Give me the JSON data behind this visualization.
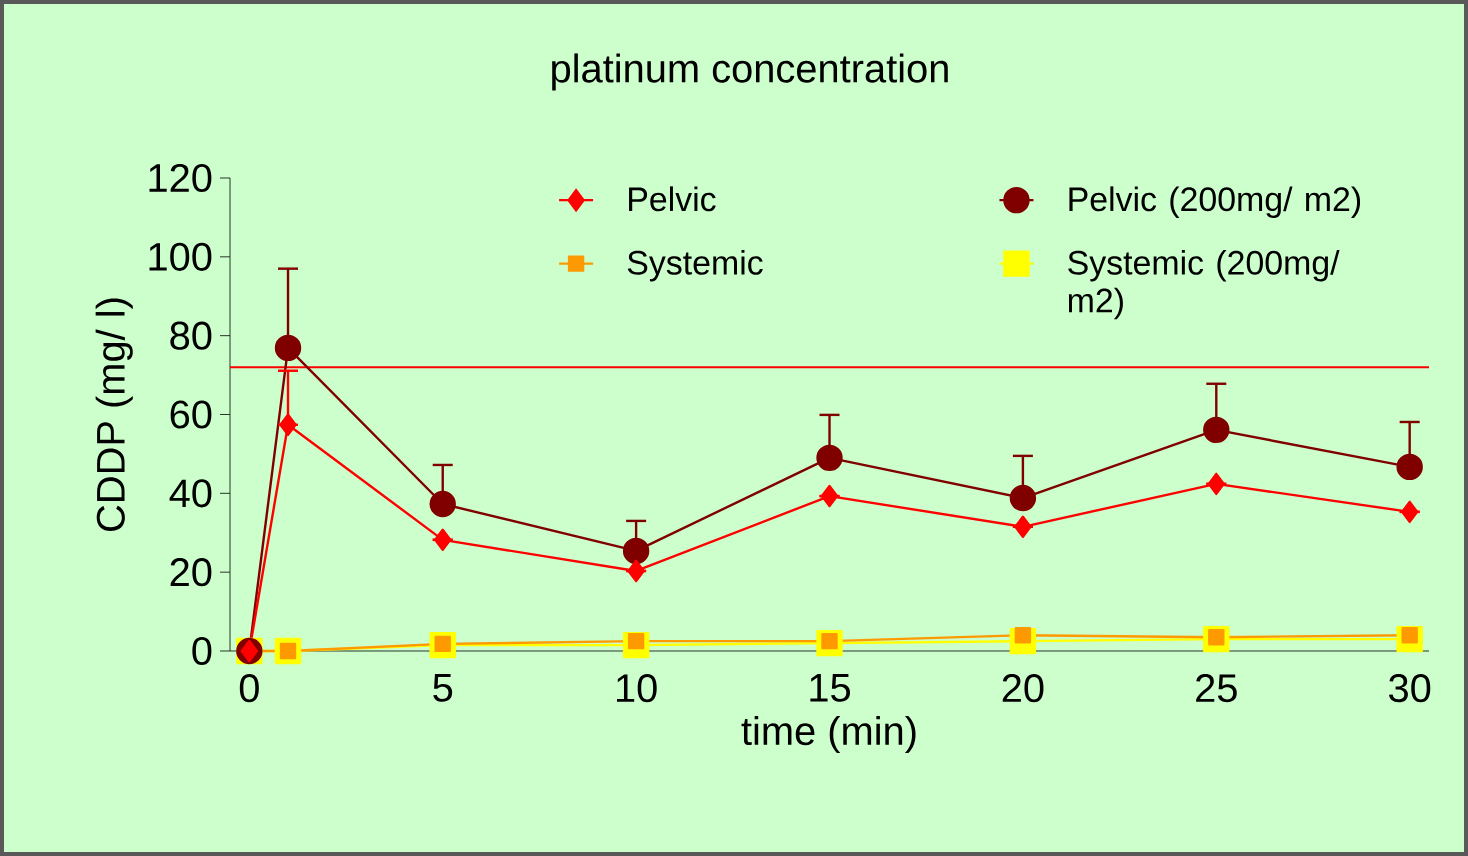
{
  "chart_data": {
    "type": "line",
    "title": "platinum concentration",
    "xlabel": "time (min)",
    "ylabel": "CDDP (mg/ l)",
    "xlim": [
      -0.5,
      30.5
    ],
    "xticks": [
      0,
      5,
      10,
      15,
      20,
      25,
      30
    ],
    "ylim": [
      0,
      120
    ],
    "yticks": [
      0,
      20,
      40,
      60,
      80,
      100,
      120
    ],
    "grid": false,
    "legend": "top right",
    "x": [
      0,
      1,
      5,
      10,
      15,
      20,
      25,
      30
    ],
    "series": [
      {
        "name": "Pelvic",
        "color": "#ff0000",
        "marker": "diamond",
        "values": [
          0,
          57.4,
          28.2,
          20.3,
          39.3,
          31.5,
          42.4,
          35.3
        ],
        "errors": [
          null,
          [
            57.4,
            71.1
          ],
          null,
          null,
          null,
          null,
          null,
          null
        ]
      },
      {
        "name": "Pelvic (200mg/ m2)",
        "color": "#800000",
        "marker": "circle",
        "values": [
          0,
          76.9,
          37.3,
          25.4,
          49,
          38.8,
          56.1,
          46.7
        ],
        "errors": [
          null,
          [
            76.9,
            97
          ],
          [
            37.3,
            47.2
          ],
          [
            25.4,
            33
          ],
          [
            49,
            59.9
          ],
          [
            38.8,
            49.5
          ],
          [
            56.1,
            67.8
          ],
          [
            46.7,
            58.1
          ]
        ]
      },
      {
        "name": "Systemic",
        "color": "#ff9900",
        "marker": "square",
        "values": [
          0,
          0,
          1.8,
          2.5,
          2.5,
          4,
          3.5,
          4
        ]
      },
      {
        "name": "Systemic (200mg/ m2)",
        "color": "#ffff00",
        "marker": "square",
        "values": [
          0,
          0,
          1.5,
          1.5,
          2,
          2.5,
          3,
          3
        ]
      }
    ],
    "ref_lines": [
      {
        "axis": "y",
        "value": 72,
        "color": "#ff0000"
      }
    ]
  }
}
